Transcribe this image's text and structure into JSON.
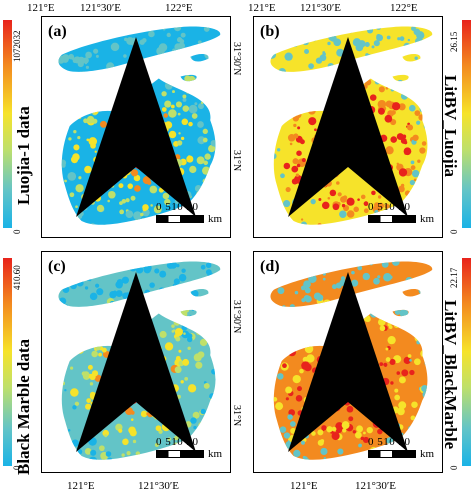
{
  "axis": {
    "lon_left": "121°E",
    "lon_mid": "121°30′E",
    "lon_right": "122°E",
    "lat_top": "31°30′N",
    "lat_mid": "31°N"
  },
  "panels": [
    {
      "label": "(a)",
      "north": "N",
      "scale_nums": "0 510  20",
      "scale_unit": "km"
    },
    {
      "label": "(b)",
      "north": "N",
      "scale_nums": "0 510  20",
      "scale_unit": "km"
    },
    {
      "label": "(c)",
      "north": "N",
      "scale_nums": "0 510  20",
      "scale_unit": "km"
    },
    {
      "label": "(d)",
      "north": "N",
      "scale_nums": "0 510  20",
      "scale_unit": "km"
    }
  ],
  "side_labels": {
    "left_top": "Luojia-1 data",
    "left_bottom": "Black Marble data",
    "right_top": "LitBV_Luojia",
    "right_bottom": "LitBV_BlackMarble"
  },
  "colorbars": {
    "left_top": {
      "max": "1072032",
      "min": "0"
    },
    "right_top": {
      "max": "26.15",
      "min": "0"
    },
    "left_bottom": {
      "max": "410.60",
      "min": "0"
    },
    "right_bottom": {
      "max": "22.17",
      "min": "0"
    }
  },
  "colors": {
    "high": "#e8231c",
    "mid": "#f6e32a",
    "low": "#1ab3e6"
  }
}
